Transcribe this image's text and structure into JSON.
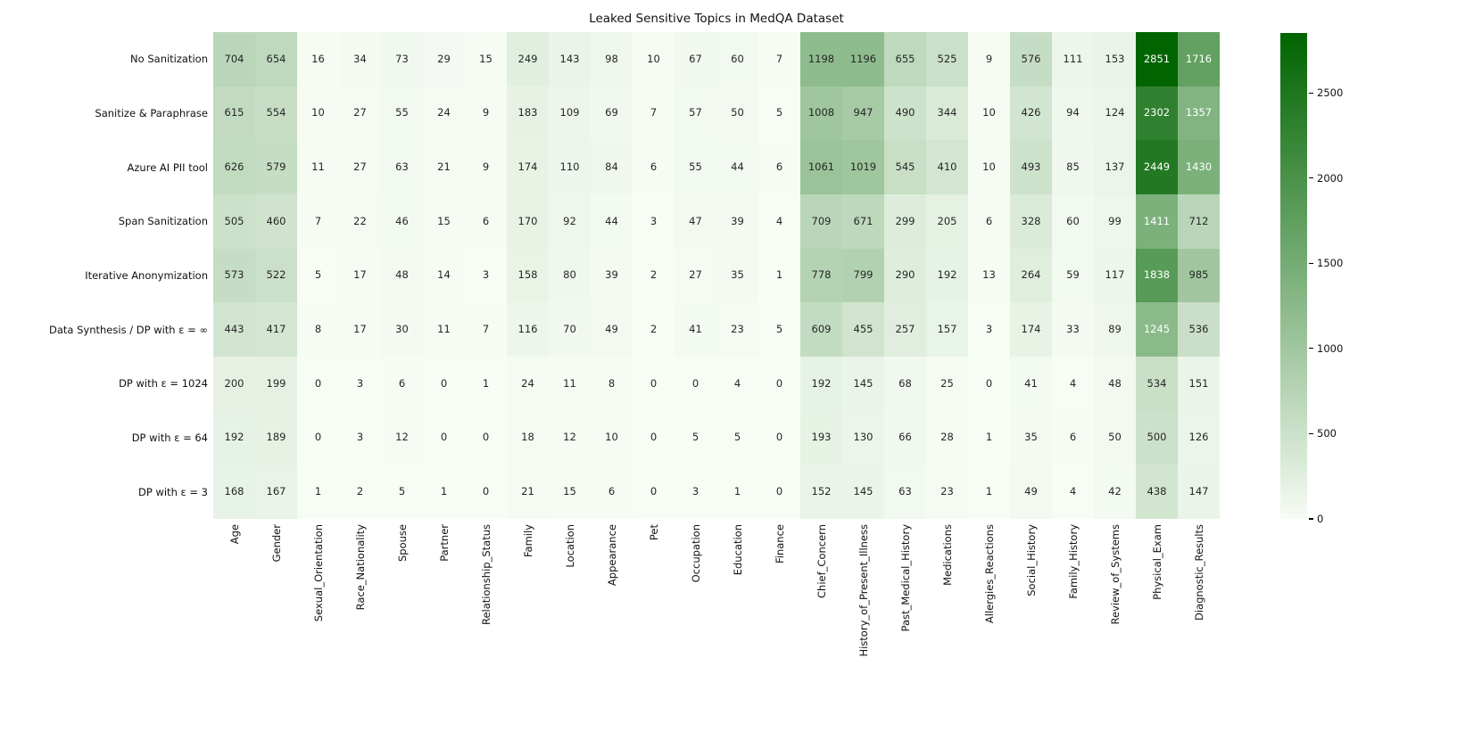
{
  "title": "Leaked Sensitive Topics in MedQA Dataset",
  "chart_data": {
    "type": "heatmap",
    "title": "Leaked Sensitive Topics in MedQA Dataset",
    "rows": [
      "No Sanitization",
      "Sanitize & Paraphrase",
      "Azure AI PII tool",
      "Span Sanitization",
      "Iterative Anonymization",
      "Data Synthesis / DP with ε = ∞",
      "DP with ε = 1024",
      "DP with ε = 64",
      "DP with ε = 3"
    ],
    "columns": [
      "Age",
      "Gender",
      "Sexual_Orientation",
      "Race_Nationality",
      "Spouse",
      "Partner",
      "Relationship_Status",
      "Family",
      "Location",
      "Appearance",
      "Pet",
      "Occupation",
      "Education",
      "Finance",
      "Chief_Concern",
      "History_of_Present_Illness",
      "Past_Medical_History",
      "Medications",
      "Allergies_Reactions",
      "Social_History",
      "Family_History",
      "Review_of_Systems",
      "Physical_Exam",
      "Diagnostic_Results"
    ],
    "values": [
      [
        704,
        654,
        16,
        34,
        73,
        29,
        15,
        249,
        143,
        98,
        10,
        67,
        60,
        7,
        1198,
        1196,
        655,
        525,
        9,
        576,
        111,
        153,
        2851,
        1716
      ],
      [
        615,
        554,
        10,
        27,
        55,
        24,
        9,
        183,
        109,
        69,
        7,
        57,
        50,
        5,
        1008,
        947,
        490,
        344,
        10,
        426,
        94,
        124,
        2302,
        1357
      ],
      [
        626,
        579,
        11,
        27,
        63,
        21,
        9,
        174,
        110,
        84,
        6,
        55,
        44,
        6,
        1061,
        1019,
        545,
        410,
        10,
        493,
        85,
        137,
        2449,
        1430
      ],
      [
        505,
        460,
        7,
        22,
        46,
        15,
        6,
        170,
        92,
        44,
        3,
        47,
        39,
        4,
        709,
        671,
        299,
        205,
        6,
        328,
        60,
        99,
        1411,
        712
      ],
      [
        573,
        522,
        5,
        17,
        48,
        14,
        3,
        158,
        80,
        39,
        2,
        27,
        35,
        1,
        778,
        799,
        290,
        192,
        13,
        264,
        59,
        117,
        1838,
        985
      ],
      [
        443,
        417,
        8,
        17,
        30,
        11,
        7,
        116,
        70,
        49,
        2,
        41,
        23,
        5,
        609,
        455,
        257,
        157,
        3,
        174,
        33,
        89,
        1245,
        536
      ],
      [
        200,
        199,
        0,
        3,
        6,
        0,
        1,
        24,
        11,
        8,
        0,
        0,
        4,
        0,
        192,
        145,
        68,
        25,
        0,
        41,
        4,
        48,
        534,
        151
      ],
      [
        192,
        189,
        0,
        3,
        12,
        0,
        0,
        18,
        12,
        10,
        0,
        5,
        5,
        0,
        193,
        130,
        66,
        28,
        1,
        35,
        6,
        50,
        500,
        126
      ],
      [
        168,
        167,
        1,
        2,
        5,
        1,
        0,
        21,
        15,
        6,
        0,
        3,
        1,
        0,
        152,
        145,
        63,
        23,
        1,
        49,
        4,
        42,
        438,
        147
      ]
    ],
    "vmin": 0,
    "vmax": 2851,
    "colormap": {
      "name": "white-to-darkgreen",
      "start": "#f7fcf5",
      "end": "#006400"
    },
    "colorbar": {
      "ticks": [
        0,
        500,
        1000,
        1500,
        2000,
        2500
      ],
      "position": "right"
    },
    "annotations": {
      "enabled": true,
      "dark_text": "#262626",
      "light_text": "#ffffff",
      "light_text_min_value": 1220
    },
    "legend": null,
    "grid": false
  }
}
